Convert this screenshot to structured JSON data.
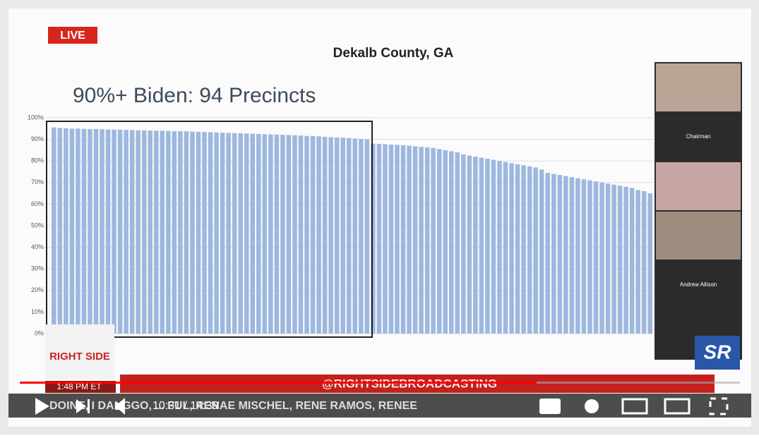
{
  "chart_data": {
    "type": "bar",
    "title": "Dekalb County, GA",
    "subtitle": "90%+ Biden: 94 Precincts",
    "color": "#9db7df",
    "values": [
      95.5,
      95.3,
      95.2,
      95,
      95,
      94.9,
      94.8,
      94.8,
      94.7,
      94.6,
      94.5,
      94.5,
      94.4,
      94.3,
      94.2,
      94.2,
      94.1,
      94,
      94,
      93.9,
      93.8,
      93.8,
      93.7,
      93.6,
      93.5,
      93.4,
      93.3,
      93.2,
      93.1,
      93,
      92.9,
      92.8,
      92.7,
      92.6,
      92.5,
      92.4,
      92.3,
      92.2,
      92.1,
      92,
      91.9,
      91.8,
      91.6,
      91.5,
      91.4,
      91.2,
      91,
      90.9,
      90.8,
      90.6,
      90.4,
      90.2,
      90,
      88,
      87.9,
      87.8,
      87.6,
      87.5,
      87.3,
      87,
      86.8,
      86.5,
      86.3,
      86,
      85.5,
      85,
      84.5,
      84,
      83,
      82.5,
      82,
      81.5,
      81,
      80.5,
      80,
      79.5,
      79,
      78.5,
      78,
      77.5,
      77,
      76,
      74.5,
      74,
      73.5,
      73,
      72.5,
      72,
      71.5,
      71,
      70.5,
      70,
      69.5,
      69,
      68.5,
      68,
      67.5,
      66.5,
      66,
      65
    ],
    "ylim": [
      0,
      100
    ],
    "yticks": [
      {
        "value": 0,
        "label": "0%"
      },
      {
        "value": 10,
        "label": "10%"
      },
      {
        "value": 20,
        "label": "20%"
      },
      {
        "value": 30,
        "label": "30%"
      },
      {
        "value": 40,
        "label": "40%"
      },
      {
        "value": 50,
        "label": "50%"
      },
      {
        "value": 60,
        "label": "60%"
      },
      {
        "value": 70,
        "label": "70%"
      },
      {
        "value": 80,
        "label": "80%"
      },
      {
        "value": 90,
        "label": "90%"
      },
      {
        "value": 100,
        "label": "100%"
      }
    ]
  },
  "overlay": {
    "live": "LIVE",
    "participants": [
      "Chairman",
      "Andrew Allison"
    ],
    "logo": "RIGHT SIDE",
    "clock": "1:48 PM ET",
    "handle": "@RIGHTSIDEBROADCASTING",
    "ticker": "DOINE, I DANGGO, ... FUL, RENAE MISCHEL, RENE RAMOS, RENEE",
    "badge": "SR"
  },
  "player": {
    "time": "10:31 / 14:39"
  }
}
